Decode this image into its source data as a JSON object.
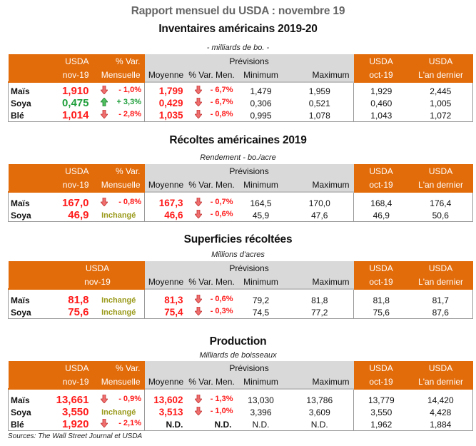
{
  "report": {
    "title": "Rapport mensuel du USDA : novembre 19",
    "sources": "Sources: The Wall Street Journal et USDA"
  },
  "headers": {
    "usda": "USDA",
    "nov19": "nov-19",
    "var": "% Var.",
    "mensuelle": "Mensuelle",
    "previsions": "Prévisions",
    "moyenne": "Moyenne",
    "var_men": "% Var. Men.",
    "minimum": "Minimum",
    "maximum": "Maximum",
    "oct19": "oct-19",
    "last_year": "L'an dernier"
  },
  "colors": {
    "header_orange": "#e26b0a",
    "header_grey": "#d9d9d9",
    "down_red": "#ff1a1a",
    "up_green": "#1e9e3a",
    "unchanged_olive": "#9a9a1c"
  },
  "sections": [
    {
      "title": "Inventaires américains 2019-20",
      "units": "- milliards de bo. -",
      "rows": [
        {
          "crop": "Maïs",
          "usda_nov": "1,910",
          "trend": "down",
          "var": "- 1,0%",
          "moyenne": "1,799",
          "men_trend": "down",
          "var_men": "- 6,7%",
          "min": "1,479",
          "max": "1,959",
          "oct": "1,929",
          "last_year": "2,445"
        },
        {
          "crop": "Soya",
          "usda_nov": "0,475",
          "trend": "up",
          "var": "+ 3,3%",
          "moyenne": "0,429",
          "men_trend": "down",
          "var_men": "- 6,7%",
          "min": "0,306",
          "max": "0,521",
          "oct": "0,460",
          "last_year": "1,005"
        },
        {
          "crop": "Blé",
          "usda_nov": "1,014",
          "trend": "down",
          "var": "- 2,8%",
          "moyenne": "1,035",
          "men_trend": "down",
          "var_men": "- 0,8%",
          "min": "0,995",
          "max": "1,078",
          "oct": "1,043",
          "last_year": "1,072"
        }
      ]
    },
    {
      "title": "Récoltes américaines 2019",
      "units": "Rendement - bo./acre",
      "rows": [
        {
          "crop": "Maïs",
          "usda_nov": "167,0",
          "trend": "down",
          "var": "- 0,8%",
          "moyenne": "167,3",
          "men_trend": "down",
          "var_men": "- 0,7%",
          "min": "164,5",
          "max": "170,0",
          "oct": "168,4",
          "last_year": "176,4"
        },
        {
          "crop": "Soya",
          "usda_nov": "46,9",
          "trend": "unchanged",
          "var": "Inchangé",
          "moyenne": "46,6",
          "men_trend": "down",
          "var_men": "- 0,6%",
          "min": "45,9",
          "max": "47,6",
          "oct": "46,9",
          "last_year": "50,6"
        }
      ]
    },
    {
      "title": "Superficies récoltées",
      "units": "Millions d'acres",
      "rows": [
        {
          "crop": "Maïs",
          "usda_nov": "81,8",
          "trend": "unchanged",
          "var": "Inchangé",
          "moyenne": "81,3",
          "men_trend": "down",
          "var_men": "- 0,6%",
          "min": "79,2",
          "max": "81,8",
          "oct": "81,8",
          "last_year": "81,7"
        },
        {
          "crop": "Soya",
          "usda_nov": "75,6",
          "trend": "unchanged",
          "var": "Inchangé",
          "moyenne": "75,4",
          "men_trend": "down",
          "var_men": "- 0,3%",
          "min": "74,5",
          "max": "77,2",
          "oct": "75,6",
          "last_year": "87,6"
        }
      ]
    },
    {
      "title": "Production",
      "units": "Milliards de boisseaux",
      "rows": [
        {
          "crop": "Maïs",
          "usda_nov": "13,661",
          "trend": "down",
          "var": "- 0,9%",
          "moyenne": "13,602",
          "men_trend": "down",
          "var_men": "- 1,3%",
          "min": "13,030",
          "max": "13,786",
          "oct": "13,779",
          "last_year": "14,420"
        },
        {
          "crop": "Soya",
          "usda_nov": "3,550",
          "trend": "unchanged",
          "var": "Inchangé",
          "moyenne": "3,513",
          "men_trend": "down",
          "var_men": "- 1,0%",
          "min": "3,396",
          "max": "3,609",
          "oct": "3,550",
          "last_year": "4,428"
        },
        {
          "crop": "Blé",
          "usda_nov": "1,920",
          "trend": "down",
          "var": "- 2,1%",
          "moyenne": "N.D.",
          "men_trend": "none",
          "var_men": "N.D.",
          "min": "N.D.",
          "max": "N.D.",
          "oct": "1,962",
          "last_year": "1,884"
        }
      ]
    }
  ]
}
